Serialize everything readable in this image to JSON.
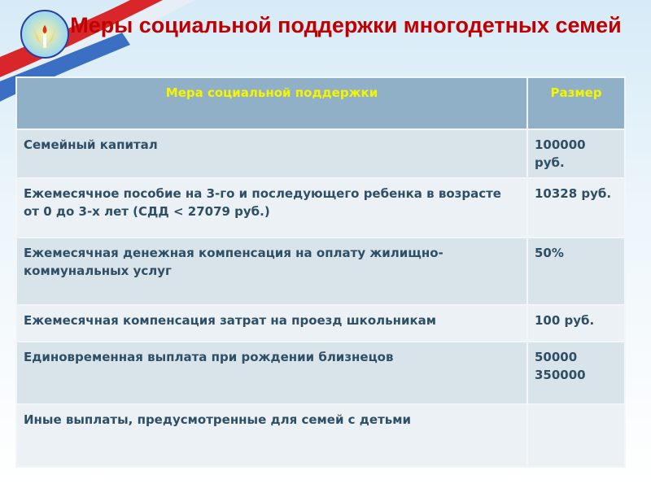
{
  "title": "Меры социальной поддержки многодетных семей",
  "table": {
    "headers": [
      "Мера социальной поддержки",
      "Размер"
    ],
    "rows": [
      {
        "measure": "Семейный капитал",
        "amount": "100000 руб."
      },
      {
        "measure": "Ежемесячное пособие на 3-го и последующего ребенка  в возрасте от 0 до 3-х лет (СДД < 27079 руб.)",
        "amount": "10328 руб."
      },
      {
        "measure": "Ежемесячная денежная компенсация на оплату жилищно-коммунальных услуг",
        "amount": "50%"
      },
      {
        "measure": "Ежемесячная компенсация затрат на проезд школьникам",
        "amount": "100 руб."
      },
      {
        "measure": "Единовременная выплата при рождении близнецов",
        "amount": "50000 350000"
      },
      {
        "measure": "Иные выплаты, предусмотренные для семей с детьми",
        "amount": ""
      }
    ]
  },
  "colors": {
    "title": "#c00000",
    "header_bg": "#8fb0c6",
    "header_text": "#f5f500",
    "text": "#2f4f66"
  }
}
